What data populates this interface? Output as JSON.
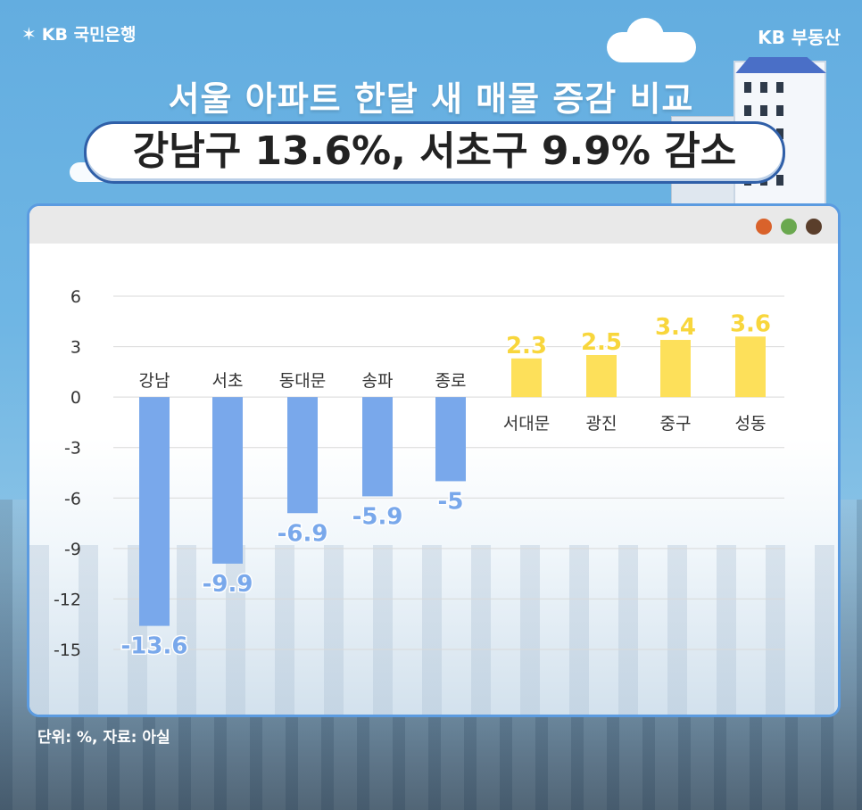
{
  "brand": {
    "left_logo_text": "KB 국민은행",
    "left_logo_icon": "kb-star-icon",
    "right_logo_text": "KB 부동산"
  },
  "headline": {
    "title": "서울 아파트 한달 새 매물 증감 비교",
    "subtitle": "강남구 13.6%, 서초구 9.9% 감소"
  },
  "window_dots": {
    "colors": [
      "#d9622b",
      "#6aa84f",
      "#5a3e2b"
    ]
  },
  "colors": {
    "negative_bar": "#79a8eb",
    "positive_bar": "#fde05a",
    "negative_label": "#79a8eb",
    "positive_label": "#f8d63c"
  },
  "footer": {
    "note": "단위: %, 자료: 아실"
  },
  "chart_data": {
    "type": "bar",
    "title": "",
    "xlabel": "",
    "ylabel": "",
    "categories": [
      "강남",
      "서초",
      "동대문",
      "송파",
      "종로",
      "서대문",
      "광진",
      "중구",
      "성동"
    ],
    "values": [
      -13.6,
      -9.9,
      -6.9,
      -5.9,
      -5,
      2.3,
      2.5,
      3.4,
      3.6
    ],
    "value_labels": [
      "-13.6",
      "-9.9",
      "-6.9",
      "-5.9",
      "-5",
      "2.3",
      "2.5",
      "3.4",
      "3.6"
    ],
    "ylim": [
      -15,
      6
    ],
    "yticks": [
      "6",
      "3",
      "0",
      "-3",
      "-6",
      "-9",
      "-12",
      "-15"
    ],
    "ytick_values": [
      6,
      3,
      0,
      -3,
      -6,
      -9,
      -12,
      -15
    ],
    "grid": true,
    "legend": "none"
  }
}
